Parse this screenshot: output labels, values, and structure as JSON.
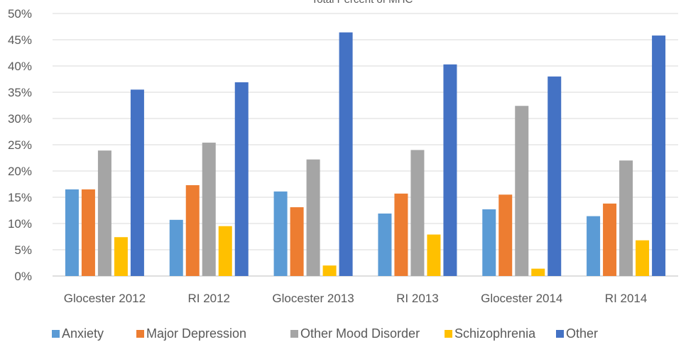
{
  "chart_data": {
    "type": "bar",
    "title": "Total Percent of MHC",
    "categories": [
      "Glocester 2012",
      "RI 2012",
      "Glocester 2013",
      "RI 2013",
      "Glocester 2014",
      "RI 2014"
    ],
    "series": [
      {
        "name": "Anxiety",
        "color": "#5B9BD5",
        "values": [
          16.5,
          10.7,
          16.1,
          11.9,
          12.7,
          11.4
        ]
      },
      {
        "name": "Major Depression",
        "color": "#ED7D31",
        "values": [
          16.5,
          17.3,
          13.1,
          15.7,
          15.5,
          13.8
        ]
      },
      {
        "name": "Other Mood Disorder",
        "color": "#A5A5A5",
        "values": [
          23.9,
          25.4,
          22.2,
          24.0,
          32.4,
          22.0
        ]
      },
      {
        "name": "Schizophrenia",
        "color": "#FFC000",
        "values": [
          7.4,
          9.5,
          2.0,
          7.9,
          1.4,
          6.8
        ]
      },
      {
        "name": "Other",
        "color": "#4472C4",
        "values": [
          35.5,
          36.9,
          46.4,
          40.3,
          38.0,
          45.8
        ]
      }
    ],
    "ylim": [
      0,
      50
    ],
    "yticks": [
      "0%",
      "5%",
      "10%",
      "15%",
      "20%",
      "25%",
      "30%",
      "35%",
      "40%",
      "45%",
      "50%"
    ],
    "grid": true,
    "legend_position": "bottom"
  }
}
